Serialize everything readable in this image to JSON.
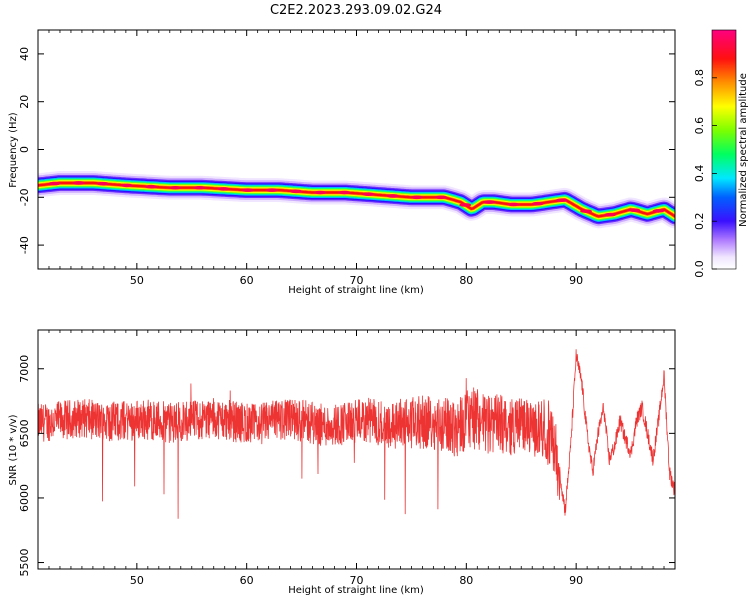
{
  "figure": {
    "title": "C2E2.2023.293.09.02.G24"
  },
  "chart_data": [
    {
      "type": "heatmap",
      "xlabel": "Height of straight line (km)",
      "ylabel": "Frequency (Hz)",
      "xlim": [
        41,
        99
      ],
      "ylim": [
        -50,
        50
      ],
      "xticks": [
        50,
        60,
        70,
        80,
        90
      ],
      "yticks": [
        -40,
        -20,
        0,
        20,
        40
      ],
      "colorbar": {
        "label": "Normalized spectral amplitude",
        "range": [
          0,
          1
        ],
        "ticks": [
          0.0,
          0.2,
          0.4,
          0.6,
          0.8
        ]
      },
      "peak_track": {
        "height_km": [
          41,
          43,
          46,
          49,
          53,
          56,
          60,
          63,
          66,
          69,
          72,
          75,
          78,
          79.5,
          80.5,
          81.5,
          82.5,
          84,
          86,
          87.5,
          89,
          90.5,
          92,
          93.5,
          95,
          96.5,
          98,
          99
        ],
        "frequency_hz": [
          -15,
          -14,
          -14,
          -15,
          -16,
          -16,
          -17,
          -17,
          -18,
          -18,
          -19,
          -20,
          -20,
          -22,
          -25,
          -22,
          -22,
          -23,
          -23,
          -22,
          -21,
          -25,
          -28,
          -27,
          -25,
          -27,
          -25,
          -28
        ]
      }
    },
    {
      "type": "line",
      "xlabel": "Height of straight line (km)",
      "ylabel": "SNR (10 * v/v)",
      "xlim": [
        41,
        99
      ],
      "ylim": [
        5450,
        7300
      ],
      "xticks": [
        50,
        60,
        70,
        80,
        90
      ],
      "yticks": [
        5500,
        6000,
        6500,
        7000
      ],
      "series": [
        {
          "color": "#ee3333",
          "x": [
            41,
            43,
            45,
            47,
            49,
            51,
            53,
            55,
            57,
            59,
            61,
            63,
            65,
            67,
            69,
            71,
            73,
            75,
            77,
            78,
            79,
            80,
            81,
            82,
            83,
            84,
            85,
            86,
            87,
            88,
            88.5,
            89,
            89.5,
            90,
            90.5,
            91,
            91.5,
            92,
            92.5,
            93,
            93.5,
            94,
            94.5,
            95,
            95.5,
            96,
            96.5,
            97,
            97.5,
            98,
            98.5,
            99
          ],
          "y": [
            6580,
            6600,
            6620,
            6590,
            6600,
            6610,
            6580,
            6600,
            6620,
            6590,
            6570,
            6610,
            6600,
            6560,
            6580,
            6600,
            6570,
            6580,
            6590,
            6560,
            6550,
            6600,
            6620,
            6560,
            6580,
            6540,
            6600,
            6520,
            6550,
            6400,
            6200,
            5900,
            6400,
            7100,
            6900,
            6500,
            6200,
            6500,
            6700,
            6300,
            6400,
            6600,
            6450,
            6350,
            6600,
            6700,
            6500,
            6300,
            6600,
            6950,
            6200,
            6050
          ],
          "envelope": {
            "x": [
              41,
              50,
              60,
              70,
              78,
              80,
              82,
              84,
              86,
              88
            ],
            "half_width": [
              150,
              160,
              160,
              170,
              220,
              250,
              230,
              220,
              200,
              260
            ]
          }
        }
      ]
    }
  ]
}
